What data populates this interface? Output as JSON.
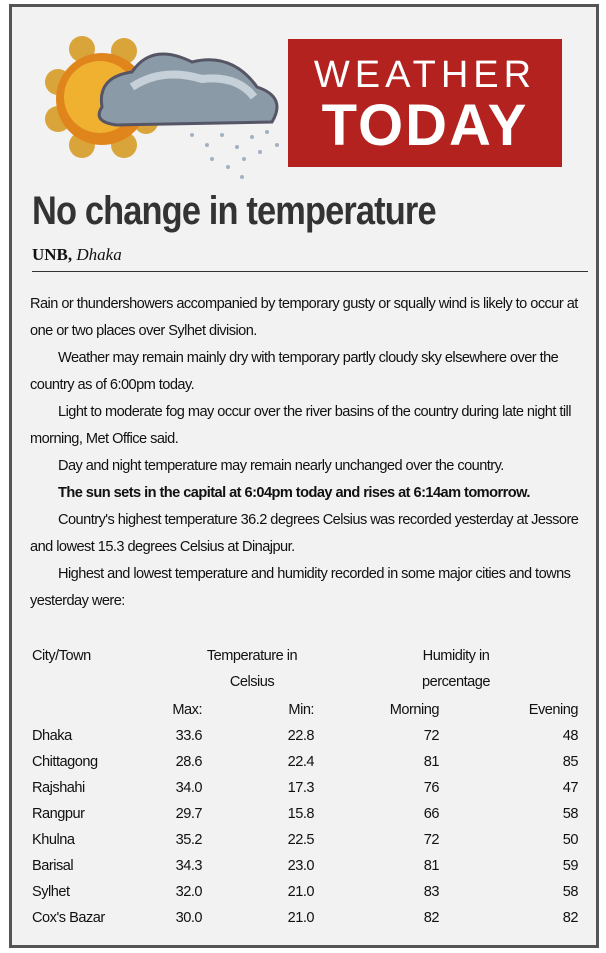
{
  "header": {
    "line1": "WEATHER",
    "line2": "TODAY"
  },
  "headline": "No change in temperature",
  "byline": {
    "agency": "UNB,",
    "place": "Dhaka"
  },
  "paragraphs": [
    "Rain or thundershowers accompanied by temporary gusty or squally wind is likely to occur at one or two places over Sylhet division.",
    "Weather may remain mainly dry with temporary partly cloudy sky elsewhere over the country as of 6:00pm today.",
    "Light to moderate fog may occur over the river basins of the country during late night till morning, Met Office said.",
    "Day and night temperature may remain nearly unchanged over the country.",
    "The sun sets in the capital at 6:04pm today and rises at 6:14am tomorrow.",
    "Country's highest temperature 36.2 degrees Celsius was recorded yesterday at Jessore and lowest 15.3 degrees Celsius at Dinajpur.",
    "Highest and lowest temperature and humidity recorded in some major cities and towns yesterday were:"
  ],
  "table": {
    "headers": {
      "city": "City/Town",
      "temperature": "Temperature in Celsius",
      "humidity": "Humidity in percentage"
    },
    "subheaders": [
      "Max:",
      "Min:",
      "Morning",
      "Evening"
    ],
    "rows": [
      [
        "Dhaka",
        "33.6",
        "22.8",
        "72",
        "48"
      ],
      [
        "Chittagong",
        "28.6",
        "22.4",
        "81",
        "85"
      ],
      [
        "Rajshahi",
        "34.0",
        "17.3",
        "76",
        "47"
      ],
      [
        "Rangpur",
        "29.7",
        "15.8",
        "66",
        "58"
      ],
      [
        "Khulna",
        "35.2",
        "22.5",
        "72",
        "50"
      ],
      [
        "Barisal",
        "34.3",
        "23.0",
        "81",
        "59"
      ],
      [
        "Sylhet",
        "32.0",
        "21.0",
        "83",
        "58"
      ],
      [
        "Cox's Bazar",
        "30.0",
        "21.0",
        "82",
        "82"
      ]
    ]
  }
}
